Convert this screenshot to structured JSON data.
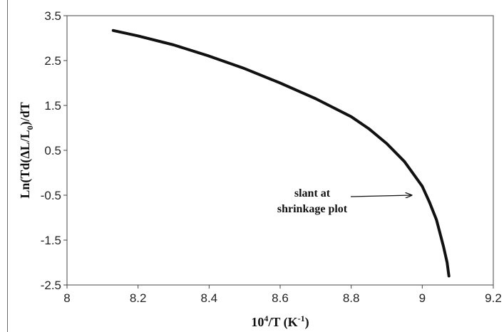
{
  "chart_data": {
    "type": "line",
    "title": "",
    "xlabel": "10⁴/T (K⁻¹)",
    "ylabel": "Ln(Td(ΔL/L₀)/dT",
    "xlim": [
      8,
      9.2
    ],
    "ylim": [
      -2.5,
      3.5
    ],
    "xticks": [
      8,
      8.2,
      8.4,
      8.6,
      8.8,
      9,
      9.2
    ],
    "yticks": [
      -2.5,
      -1.5,
      -0.5,
      0.5,
      1.5,
      2.5,
      3.5
    ],
    "xtick_labels": [
      "8",
      "8.2",
      "8.4",
      "8.6",
      "8.8",
      "9",
      "9.2"
    ],
    "ytick_labels": [
      "-2.5",
      "-1.5",
      "-0.5",
      "0.5",
      "1.5",
      "2.5",
      "3.5"
    ],
    "grid": false,
    "series": [
      {
        "color": "#111111",
        "x": [
          8.13,
          8.2,
          8.3,
          8.4,
          8.5,
          8.6,
          8.7,
          8.8,
          8.85,
          8.9,
          8.95,
          9.0,
          9.02,
          9.04,
          9.05,
          9.06,
          9.07,
          9.075
        ],
        "y": [
          3.17,
          3.05,
          2.85,
          2.6,
          2.32,
          2.0,
          1.65,
          1.25,
          0.98,
          0.65,
          0.25,
          -0.3,
          -0.65,
          -1.05,
          -1.35,
          -1.65,
          -2.0,
          -2.3
        ]
      }
    ],
    "annotations": [
      {
        "lines": [
          "slant at",
          "shrinkage plot"
        ],
        "arrow_to": [
          8.97,
          -0.5
        ]
      }
    ]
  }
}
